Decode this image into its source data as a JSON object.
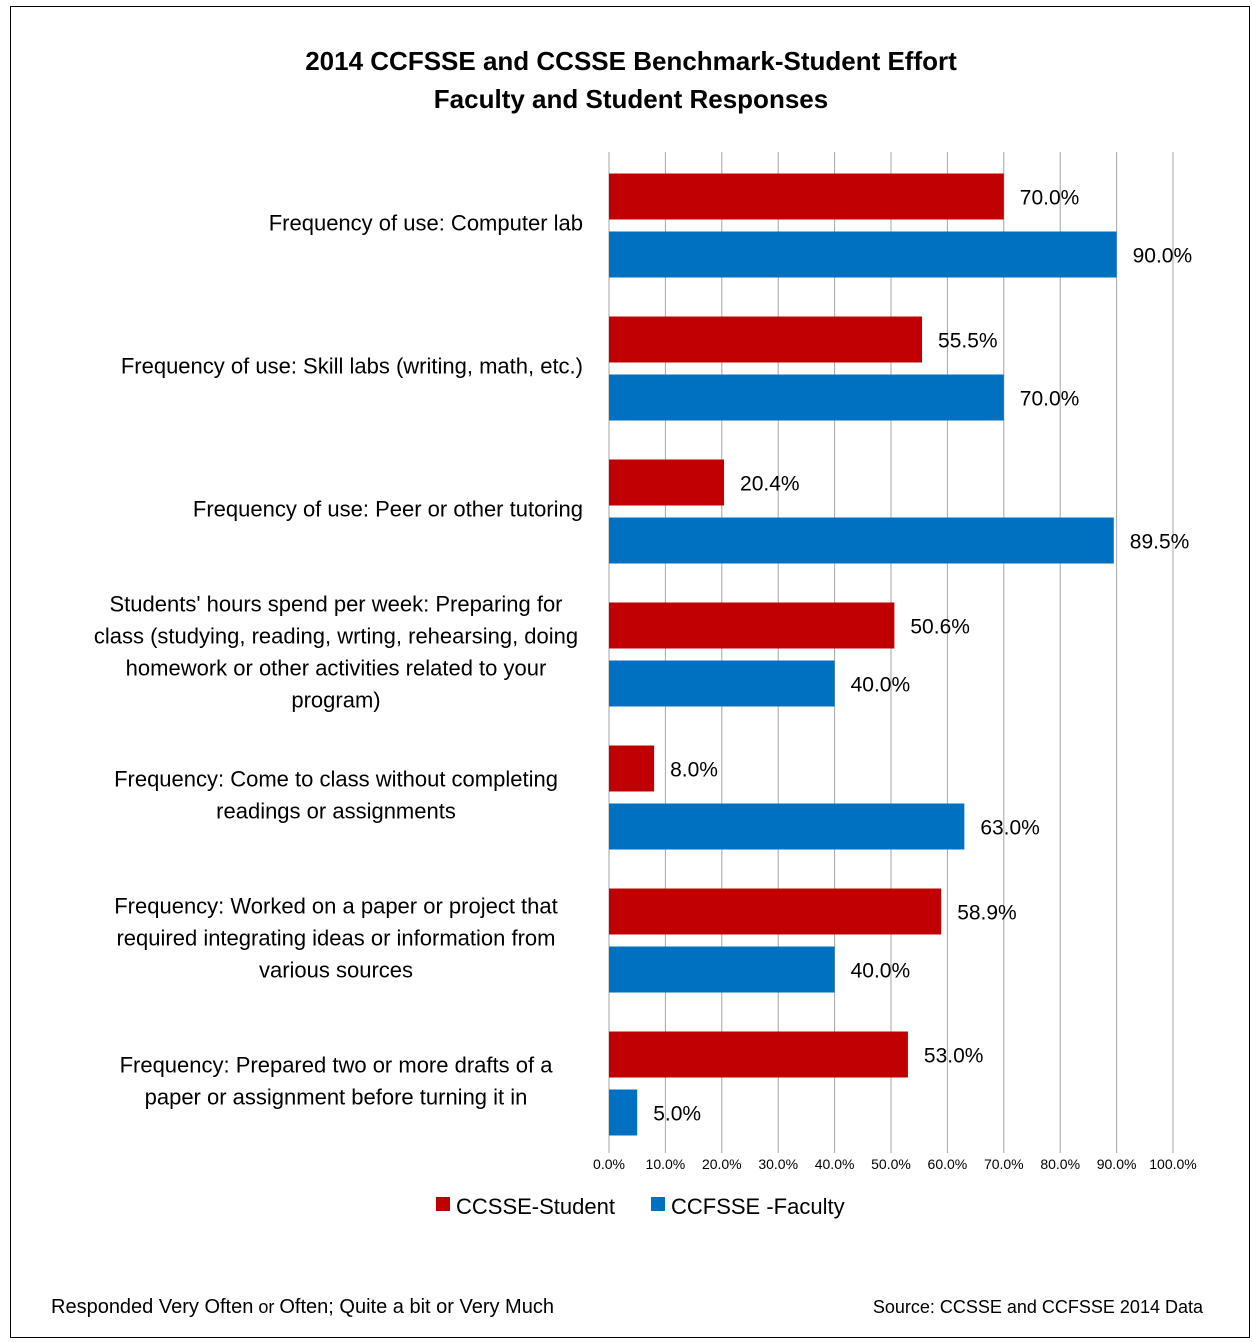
{
  "chart_data": {
    "type": "bar",
    "orientation": "horizontal",
    "title": [
      "2014 CCFSSE and CCSSE Benchmark-Student Effort",
      "Faculty and Student Responses"
    ],
    "categories": [
      [
        "Frequency of use: Computer lab"
      ],
      [
        "Frequency of use: Skill labs (writing, math, etc.)"
      ],
      [
        "Frequency of use: Peer or other tutoring"
      ],
      [
        "Students' hours spend per week: Preparing for",
        "class (studying, reading, wrting, rehearsing, doing",
        "homework or other activities related to your",
        "program)"
      ],
      [
        "Frequency: Come to class without completing",
        "readings or assignments"
      ],
      [
        "Frequency: Worked on a paper or project that",
        "required integrating ideas or information from",
        "various sources"
      ],
      [
        "Frequency: Prepared two or more drafts of a",
        "paper or assignment before turning it in"
      ]
    ],
    "series": [
      {
        "name": "CCSSE-Student",
        "color": "#c00000",
        "values": [
          70.0,
          55.5,
          20.4,
          50.6,
          8.0,
          58.9,
          53.0
        ],
        "labels": [
          "70.0%",
          "55.5%",
          "20.4%",
          "50.6%",
          "8.0%",
          "58.9%",
          "53.0%"
        ]
      },
      {
        "name": "CCFSSE -Faculty",
        "color": "#0070c0",
        "values": [
          90.0,
          70.0,
          89.5,
          40.0,
          63.0,
          40.0,
          5.0
        ],
        "labels": [
          "90.0%",
          "70.0%",
          "89.5%",
          "40.0%",
          "63.0%",
          "40.0%",
          "5.0%"
        ]
      }
    ],
    "xlim": [
      0,
      100
    ],
    "xticks": [
      "0.0%",
      "10.0%",
      "20.0%",
      "30.0%",
      "40.0%",
      "50.0%",
      "60.0%",
      "70.0%",
      "80.0%",
      "90.0%",
      "100.0%"
    ],
    "grid": true,
    "legend_position": "bottom"
  },
  "footer": {
    "left_parts": [
      "Responded Very Often",
      " or ",
      "Often; Quite a bit or Very Much"
    ],
    "right": "Source: CCSSE and CCFSSE 2014 Data"
  }
}
